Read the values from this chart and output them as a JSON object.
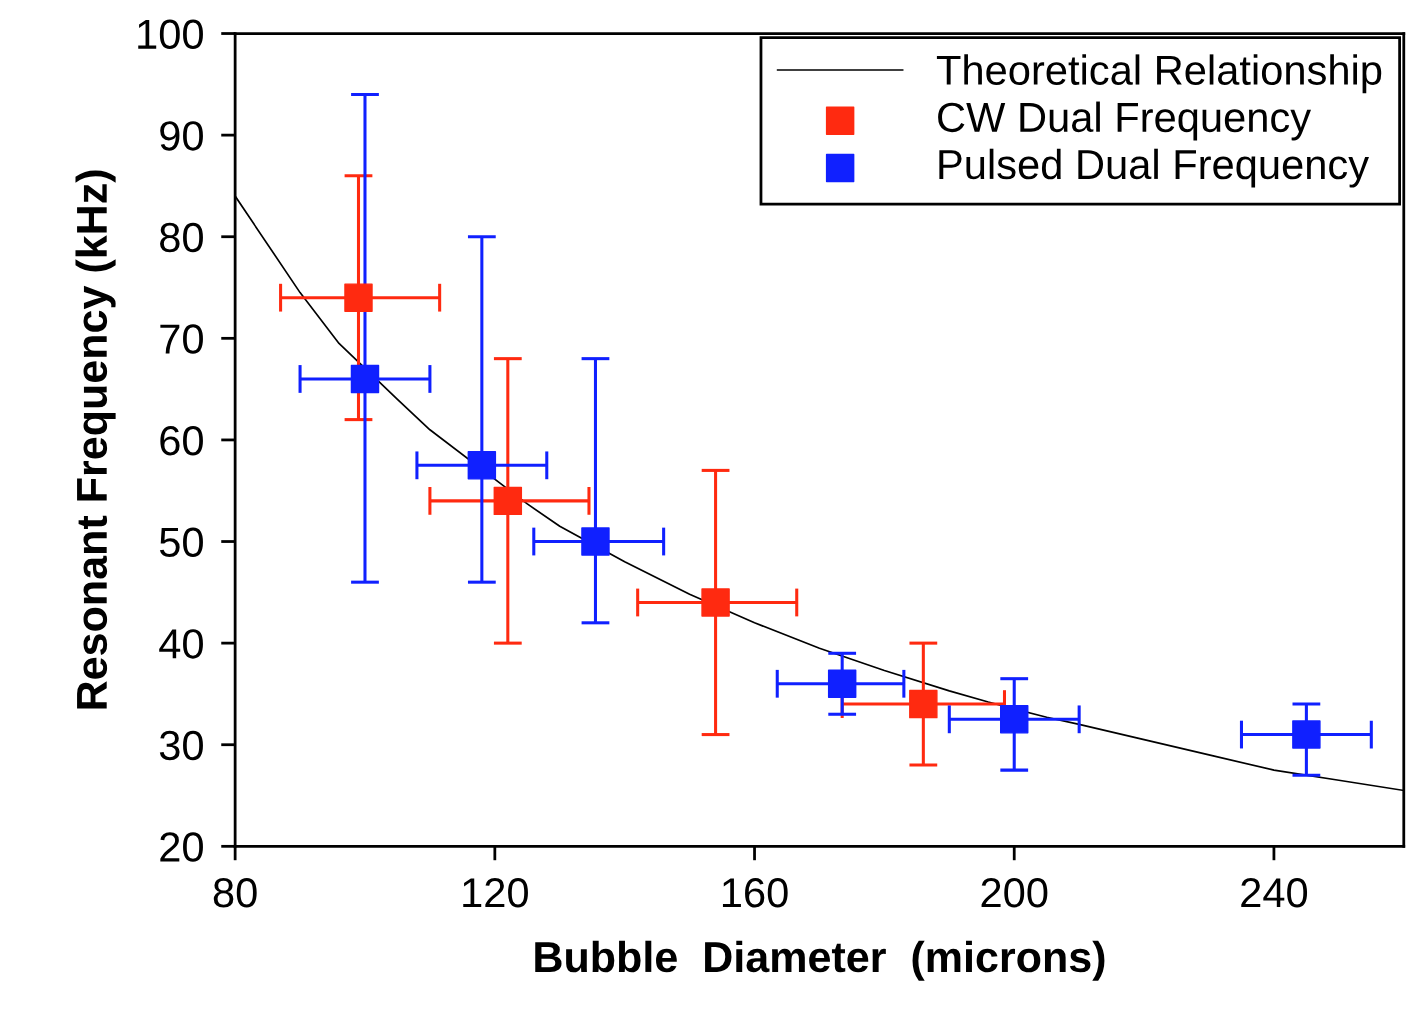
{
  "chart_data": {
    "type": "scatter",
    "xlabel": "Bubble  Diameter  (microns)",
    "ylabel": "Resonant Frequency (kHz)",
    "xlim": [
      80,
      260
    ],
    "xticks": [
      80,
      120,
      160,
      200,
      240
    ],
    "ylim": [
      20,
      100
    ],
    "yticks": [
      20,
      30,
      40,
      50,
      60,
      70,
      80,
      90,
      100
    ],
    "grid": false,
    "legend": "top right",
    "marker": "square",
    "series": [
      {
        "name": "Theoretical Relationship",
        "type": "line",
        "color": "#000000",
        "line_style": "solid",
        "marker": "none",
        "x": [
          80,
          90,
          96,
          105,
          110,
          125,
          130,
          140,
          150,
          160,
          170,
          180,
          190,
          196,
          205,
          210,
          220,
          230,
          240,
          250,
          260
        ],
        "values": [
          84,
          74.5,
          69.5,
          64,
          61,
          53.7,
          51.5,
          48,
          44.8,
          42,
          39.5,
          37.3,
          35.3,
          34.2,
          32.7,
          32,
          30.5,
          29,
          27.5,
          26.5,
          25.5
        ]
      },
      {
        "name": "CW Dual Frequency",
        "color": "#ff2a10",
        "x": [
          99,
          122,
          154,
          186
        ],
        "values": [
          74,
          54,
          44,
          34
        ],
        "errors": [
          [
            62,
            86
          ],
          [
            40,
            68
          ],
          [
            31,
            57
          ],
          [
            28,
            40
          ]
        ],
        "xerrors": [
          [
            87,
            111.5
          ],
          [
            110,
            134.5
          ],
          [
            142,
            166.5
          ],
          [
            173.5,
            198.5
          ]
        ]
      },
      {
        "name": "Pulsed Dual Frequency",
        "color": "#1020ff",
        "x": [
          100,
          118,
          135.5,
          173.5,
          200,
          245
        ],
        "values": [
          66,
          57.5,
          50,
          36,
          32.5,
          31
        ],
        "errors": [
          [
            46,
            94
          ],
          [
            46,
            80
          ],
          [
            42,
            68
          ],
          [
            33,
            39
          ],
          [
            27.5,
            36.5
          ],
          [
            27,
            34
          ]
        ],
        "xerrors": [
          [
            90,
            110
          ],
          [
            108,
            128
          ],
          [
            126,
            146
          ],
          [
            163.5,
            183
          ],
          [
            190,
            210
          ],
          [
            235,
            255
          ]
        ]
      }
    ]
  }
}
